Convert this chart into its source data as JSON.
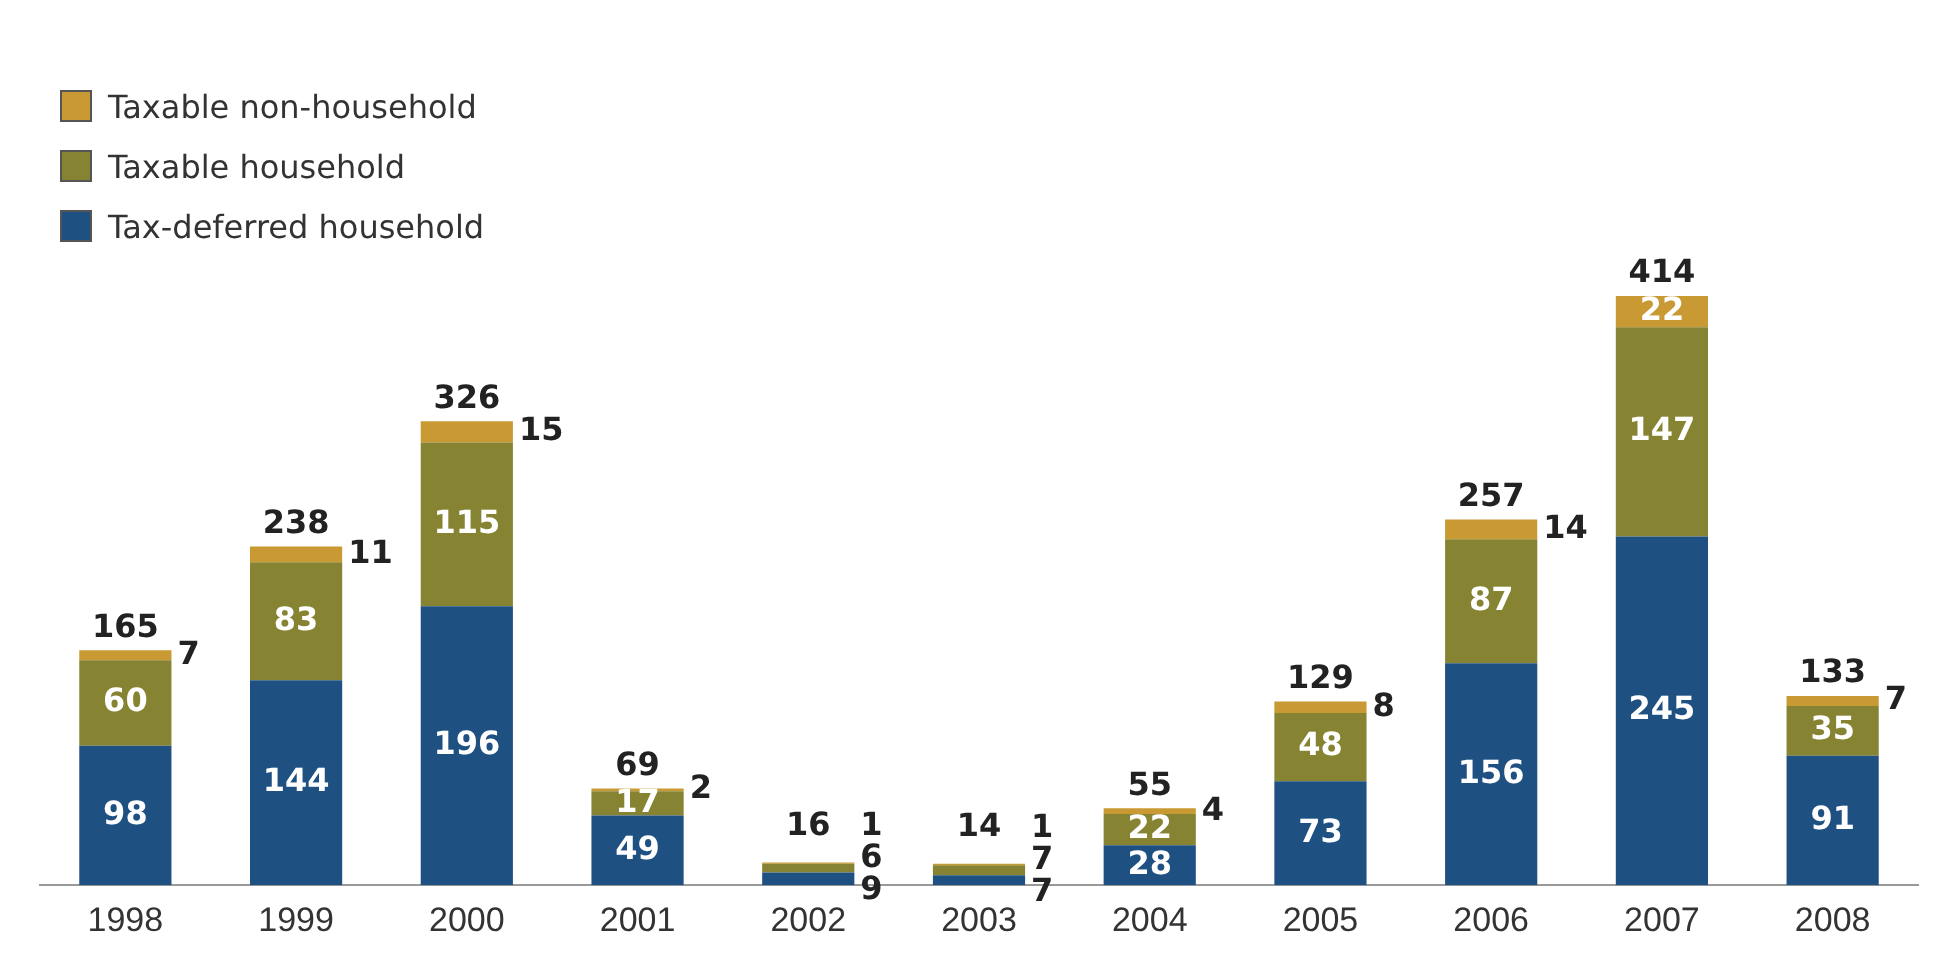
{
  "chart_data": {
    "type": "bar",
    "stacked": true,
    "categories": [
      "1998",
      "1999",
      "2000",
      "2001",
      "2002",
      "2003",
      "2004",
      "2005",
      "2006",
      "2007",
      "2008"
    ],
    "series": [
      {
        "name": "Tax-deferred household",
        "color": "#1f5082",
        "values": [
          98,
          144,
          196,
          49,
          9,
          7,
          28,
          73,
          156,
          245,
          91
        ]
      },
      {
        "name": "Taxable household",
        "color": "#868432",
        "values": [
          60,
          83,
          115,
          17,
          6,
          7,
          22,
          48,
          87,
          147,
          35
        ]
      },
      {
        "name": "Taxable non-household",
        "color": "#c99a33",
        "values": [
          7,
          11,
          15,
          2,
          1,
          1,
          4,
          8,
          14,
          22,
          7
        ]
      }
    ],
    "totals": [
      "165",
      "238",
      "326",
      "69",
      "16",
      "14",
      "55",
      "129",
      "257",
      "414",
      "133"
    ],
    "data_labels": true,
    "legend": "top left",
    "grid": false
  }
}
